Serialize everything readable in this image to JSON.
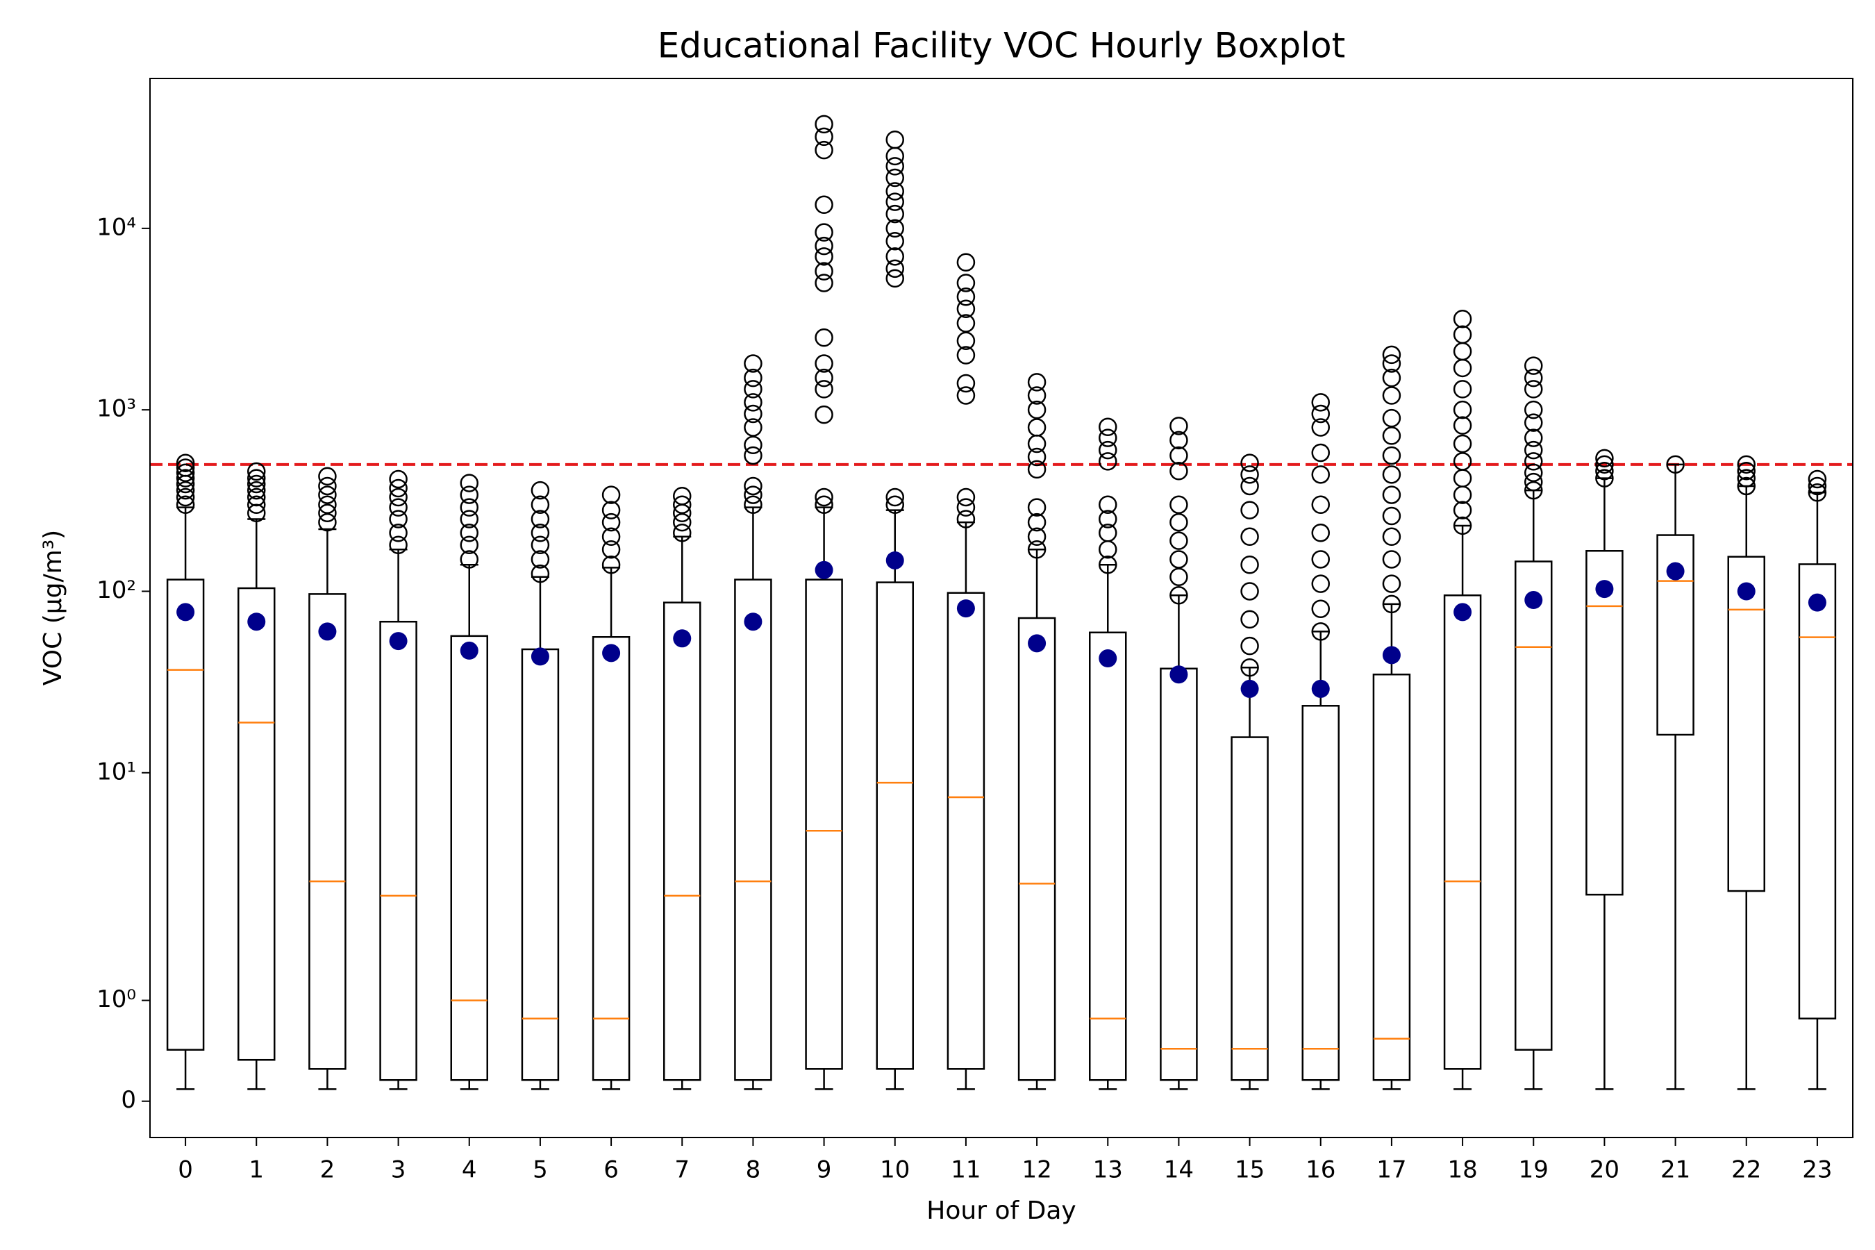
{
  "chart_data": {
    "type": "boxplot",
    "title": "Educational Facility VOC Hourly Boxplot",
    "x_label": "Hour of Day",
    "y_label": "VOC (μg/m³)",
    "categories": [
      "0",
      "1",
      "2",
      "3",
      "4",
      "5",
      "6",
      "7",
      "8",
      "9",
      "10",
      "11",
      "12",
      "13",
      "14",
      "15",
      "16",
      "17",
      "18",
      "19",
      "20",
      "21",
      "22",
      "23"
    ],
    "yscale": "symlog",
    "linthresh": 2,
    "linscale": 1,
    "ylim": [
      -0.36,
      67000
    ],
    "yticks": [
      0,
      {
        "value": 1,
        "label": "10⁰"
      },
      {
        "value": 10,
        "label": "10¹"
      },
      {
        "value": 100,
        "label": "10²"
      },
      {
        "value": 1000,
        "label": "10³"
      },
      {
        "value": 10000,
        "label": "10⁴"
      }
    ],
    "box_color": "#000000",
    "median_color": "#ff7f0e",
    "mean_color": "#00008b",
    "whislo": [
      0.12,
      0.12,
      0.12,
      0.12,
      0.12,
      0.12,
      0.12,
      0.12,
      0.12,
      0.12,
      0.12,
      0.12,
      0.12,
      0.12,
      0.12,
      0.12,
      0.12,
      0.12,
      0.12,
      0.12,
      0.12,
      0.12,
      0.12,
      0.12
    ],
    "q1": [
      0.51,
      0.41,
      0.32,
      0.21,
      0.21,
      0.21,
      0.21,
      0.21,
      0.21,
      0.32,
      0.32,
      0.32,
      0.21,
      0.21,
      0.21,
      0.21,
      0.21,
      0.21,
      0.32,
      0.51,
      2.13,
      16.2,
      2.23,
      0.82
    ],
    "med": [
      36.9,
      18.9,
      2.52,
      2.1,
      1.0,
      0.82,
      0.82,
      2.1,
      2.52,
      4.79,
      8.81,
      7.33,
      2.45,
      0.82,
      0.52,
      0.52,
      0.52,
      0.62,
      2.52,
      49.3,
      82.8,
      114,
      79.2,
      55.8
    ],
    "q3": [
      116,
      104,
      96.6,
      68,
      56.7,
      47.9,
      56,
      86.7,
      116,
      116,
      112,
      98,
      71.2,
      59.3,
      37.5,
      15.7,
      23.4,
      34.8,
      95,
      146,
      167,
      204,
      155,
      141
    ],
    "whishi": [
      290,
      250,
      220,
      170,
      140,
      120,
      135,
      200,
      290,
      290,
      280,
      240,
      170,
      140,
      95,
      38,
      60,
      85,
      230,
      360,
      420,
      500,
      380,
      350
    ],
    "mean": [
      76.8,
      68,
      60,
      53.2,
      47.1,
      43.7,
      45.7,
      55,
      68,
      131,
      148,
      80.5,
      51.7,
      42.7,
      34.8,
      29,
      29,
      44.5,
      76.8,
      89.5,
      103,
      129,
      100,
      86.7
    ],
    "fliers": [
      [
        300,
        330,
        360,
        390,
        420,
        450,
        480,
        509
      ],
      [
        270,
        300,
        330,
        360,
        390,
        420,
        457
      ],
      [
        240,
        270,
        300,
        340,
        380,
        430
      ],
      [
        180,
        210,
        250,
        290,
        330,
        370,
        415
      ],
      [
        150,
        180,
        210,
        250,
        290,
        340,
        395
      ],
      [
        125,
        150,
        180,
        210,
        250,
        300,
        360
      ],
      [
        140,
        170,
        200,
        240,
        280,
        340
      ],
      [
        210,
        240,
        270,
        300,
        335
      ],
      [
        300,
        340,
        380,
        560,
        640,
        800,
        950,
        1100,
        1300,
        1500,
        1800
      ],
      [
        300,
        330,
        940,
        1300,
        1500,
        1800,
        2500,
        5000,
        5800,
        7000,
        8000,
        9500,
        13500,
        27000,
        32000,
        37500
      ],
      [
        300,
        330,
        5300,
        6000,
        7000,
        8500,
        10000,
        12000,
        14000,
        16000,
        19000,
        22000,
        25000,
        30800
      ],
      [
        250,
        290,
        330,
        1200,
        1400,
        2000,
        2400,
        3000,
        3600,
        4200,
        5000,
        6500
      ],
      [
        170,
        200,
        240,
        290,
        470,
        550,
        650,
        800,
        1000,
        1200,
        1420
      ],
      [
        140,
        170,
        210,
        250,
        300,
        520,
        600,
        700,
        805
      ],
      [
        95,
        120,
        150,
        190,
        240,
        300,
        460,
        560,
        680,
        815
      ],
      [
        38,
        50,
        70,
        100,
        140,
        200,
        280,
        380,
        440,
        510
      ],
      [
        60,
        80,
        110,
        150,
        210,
        300,
        440,
        580,
        800,
        950,
        1100
      ],
      [
        85,
        110,
        150,
        200,
        260,
        340,
        440,
        560,
        720,
        900,
        1200,
        1500,
        1800,
        2010
      ],
      [
        230,
        280,
        340,
        420,
        520,
        650,
        820,
        1000,
        1300,
        1700,
        2100,
        2600,
        3170
      ],
      [
        360,
        400,
        450,
        520,
        600,
        700,
        850,
        1000,
        1300,
        1500,
        1750
      ],
      [
        420,
        460,
        500,
        541
      ],
      [
        500
      ],
      [
        380,
        420,
        460,
        500
      ],
      [
        350,
        380,
        415
      ]
    ],
    "threshold": {
      "value": 500,
      "color": "#e41a1c"
    }
  }
}
